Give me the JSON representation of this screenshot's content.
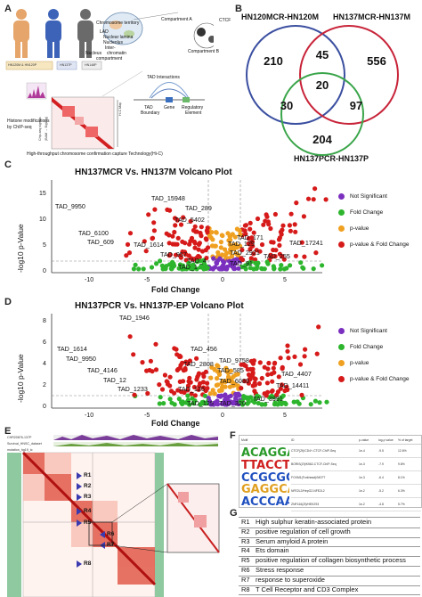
{
  "panels": {
    "A": "A",
    "B": "B",
    "C": "C",
    "D": "D",
    "E": "E",
    "F": "F",
    "G": "G"
  },
  "panel_a": {
    "chromosome_territory": "Chromosome territory",
    "lad": "LAD",
    "nuclear_lamina": "Nuclear lamina",
    "nucleolus": "Nucleolus",
    "inter_chromatin": "Inter-",
    "chromatin": "chromatin",
    "compartment": "compartment",
    "nucleus": "Nucleus",
    "compartment_a": "Compartment A",
    "compartment_b": "Compartment B",
    "ctcf": "CTCF",
    "cell_labels": [
      "HN120M & HN120P",
      "HN137P",
      "HN148P"
    ],
    "tad_interactions": "TAD Interactions",
    "tad_boundary": "TAD",
    "tad_boundary2": "Boundary",
    "gene": "Gene",
    "regulatory": "Regulatory",
    "element": "Element",
    "hic_map": "Hi-C Map",
    "chip_axis": "Chip-seq signals",
    "chip_axis2": "(BAM → BigWig)",
    "histone": "Histone modifications",
    "by_chip": "by ChIP-seq",
    "caption": "High-throughput chromosome confirmation capture Technology(Hi-C)"
  },
  "venn": {
    "titles": [
      "HN120MCR-HN120M",
      "HN137MCR-HN137M",
      "HN137PCR-HN137P"
    ],
    "only_a": "210",
    "ab": "45",
    "only_b": "556",
    "abc": "20",
    "ac": "30",
    "bc": "97",
    "only_c": "204",
    "colors": {
      "a": "#3b4fa0",
      "b": "#c8243a",
      "c": "#3aa54a"
    }
  },
  "volcano_c": {
    "title": "HN137MCR Vs. HN137M Volcano Plot",
    "ylabel": "-log10 p-Value",
    "xlabel": "Fold Change",
    "xticks": [
      "-10",
      "-5",
      "0",
      "5"
    ],
    "yticks": [
      "0",
      "5",
      "10",
      "15"
    ],
    "labels": [
      "TAD_9950",
      "TAD_15948",
      "TAD_289",
      "TAD_5402",
      "TAD_6100",
      "TAD_609",
      "TAD_1614",
      "TAD_957",
      "TAD_171",
      "TAD_17241",
      "TAD_2921",
      "TAD_255",
      "TAD_4",
      "TAD_91",
      "TAD_129",
      "TAD_1"
    ]
  },
  "volcano_d": {
    "title": "HN137PCR Vs. HN137P-EP Volcano Plot",
    "ylabel": "-log10 p-Value",
    "xlabel": "Fold Change",
    "xticks": [
      "-10",
      "-5",
      "0",
      "5"
    ],
    "yticks": [
      "0",
      "2",
      "4",
      "6",
      "8"
    ],
    "labels": [
      "TAD_1946",
      "TAD_456",
      "TAD_1614",
      "TAD_9950",
      "TAD_9758",
      "TAD_4146",
      "TAD_585",
      "TAD_12",
      "TAD_1233",
      "TAD_6089",
      "TAD_4407",
      "TAD_14411",
      "TAD_3991",
      "TAD_320",
      "TAD_125",
      "TAD_126",
      "TAD_2808"
    ]
  },
  "legend": {
    "items": [
      "Not Significant",
      "Fold Change",
      "p-value",
      "p-value & Fold Change"
    ],
    "colors": [
      "#7b2fbf",
      "#2db52d",
      "#f0a020",
      "#d61a1a"
    ]
  },
  "panel_e": {
    "header1": "CHR20876-137P",
    "header2": "Survival_HNSC_dataset",
    "header3": "mutation_hg19_tc",
    "regions": [
      "R1",
      "R2",
      "R3",
      "R4",
      "R5",
      "R6",
      "R7",
      "R8"
    ]
  },
  "panel_f": {
    "col_headers": [
      "Motif",
      "ID",
      "p-value",
      "log-p value",
      "% of target"
    ],
    "rows": [
      [
        "CTCF(Zf)/CD4+-CTCF-ChIP-Seq",
        "1e-4",
        "-9.5",
        "12.6%"
      ],
      [
        "BORIS(Zf)/K562-CTCF-ChIP-Seq",
        "1e-3",
        "-7.9",
        "9.8%"
      ],
      [
        "FOXM1(Forkhead)/MCF7",
        "1e-3",
        "-6.4",
        "8.1%"
      ],
      [
        "NFE2L2/HepG2-NFE2L2",
        "1e-2",
        "-5.2",
        "6.3%"
      ],
      [
        "ZNF416(Zf)/HEK293",
        "1e-2",
        "-4.8",
        "5.7%"
      ]
    ]
  },
  "panel_g": {
    "rows": [
      {
        "k": "R1",
        "v": "High sulphur keratin-associated protein"
      },
      {
        "k": "R2",
        "v": "positive regulation of cell growth"
      },
      {
        "k": "R3",
        "v": "Serum amyloid A protein"
      },
      {
        "k": "R4",
        "v": "Ets domain"
      },
      {
        "k": "R5",
        "v": "positive regulation of collagen biosynthetic process"
      },
      {
        "k": "R6",
        "v": "Stress response"
      },
      {
        "k": "R7",
        "v": "response to superoxide"
      },
      {
        "k": "R8",
        "v": "T Cell Receptor and CD3 Complex"
      }
    ]
  }
}
